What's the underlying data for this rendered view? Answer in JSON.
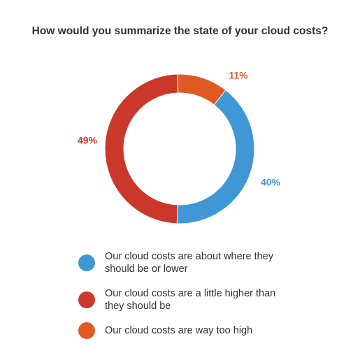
{
  "title": "How would you summarize the state of your cloud costs?",
  "chart_data": {
    "type": "pie",
    "variant": "donut",
    "title": "How would you summarize the state of your cloud costs?",
    "slices": [
      {
        "name": "Our cloud costs are about where they should be or lower",
        "value": 40,
        "label": "40%",
        "color": "#3f97d6"
      },
      {
        "name": "Our cloud costs are a little higher than they should be",
        "value": 49,
        "label": "49%",
        "color": "#c9382b"
      },
      {
        "name": "Our cloud costs are way too high",
        "value": 11,
        "label": "11%",
        "color": "#e05a24"
      }
    ],
    "legend_position": "bottom"
  }
}
